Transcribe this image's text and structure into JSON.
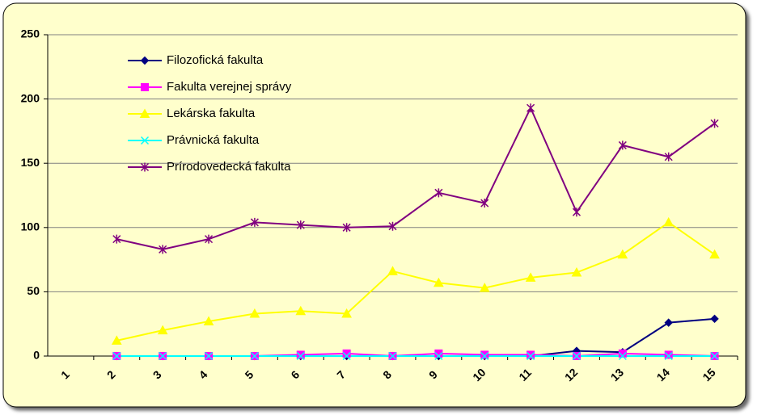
{
  "chart_data": {
    "type": "line",
    "categories": [
      "1",
      "2",
      "3",
      "4",
      "5",
      "6",
      "7",
      "8",
      "9",
      "10",
      "11",
      "12",
      "13",
      "14",
      "15"
    ],
    "series": [
      {
        "name": "Filozofická fakulta",
        "color": "#000080",
        "marker": "diamond",
        "values": [
          null,
          0,
          0,
          0,
          0,
          0,
          0,
          0,
          0,
          0,
          0,
          4,
          3,
          26,
          29
        ]
      },
      {
        "name": "Fakulta verejnej správy",
        "color": "#FF00FF",
        "marker": "square",
        "values": [
          null,
          0,
          0,
          0,
          0,
          1,
          2,
          0,
          2,
          1,
          1,
          0,
          2,
          1,
          0
        ]
      },
      {
        "name": "Lekárska fakulta",
        "color": "#FFFF00",
        "marker": "triangle",
        "values": [
          null,
          12,
          20,
          27,
          33,
          35,
          33,
          66,
          57,
          53,
          61,
          65,
          79,
          104,
          79
        ]
      },
      {
        "name": "Právnická fakulta",
        "color": "#00FFFF",
        "marker": "x",
        "values": [
          null,
          0,
          0,
          0,
          0,
          0,
          0,
          0,
          0,
          0,
          0,
          0,
          0,
          0,
          0
        ]
      },
      {
        "name": "Prírodovedecká fakulta",
        "color": "#800080",
        "marker": "star",
        "values": [
          null,
          91,
          83,
          91,
          104,
          102,
          100,
          101,
          127,
          119,
          193,
          112,
          164,
          155,
          181
        ]
      }
    ],
    "ylim": [
      0,
      250
    ],
    "yticks": [
      0,
      50,
      100,
      150,
      200,
      250
    ],
    "grid": true,
    "legend": "top-left"
  }
}
